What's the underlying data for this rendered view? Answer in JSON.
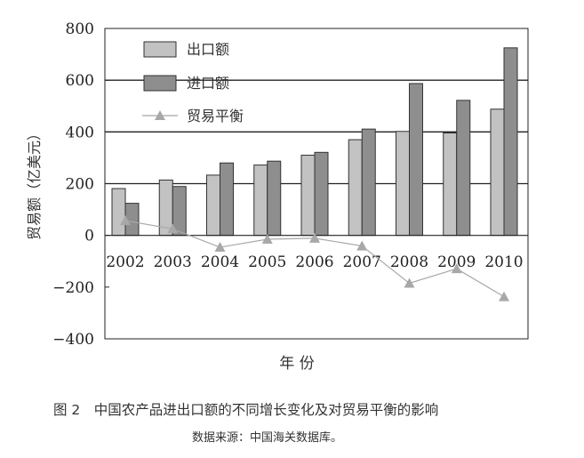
{
  "chart_data": {
    "type": "bar",
    "categories": [
      "2002",
      "2003",
      "2004",
      "2005",
      "2006",
      "2007",
      "2008",
      "2009",
      "2010"
    ],
    "series": [
      {
        "name": "出口额",
        "kind": "bar",
        "color": "#c2c2c2",
        "values": [
          181,
          214,
          233,
          272,
          310,
          370,
          402,
          396,
          488
        ]
      },
      {
        "name": "进口额",
        "kind": "bar",
        "color": "#8e8e8e",
        "values": [
          124,
          189,
          280,
          287,
          321,
          411,
          587,
          522,
          725
        ]
      },
      {
        "name": "贸易平衡",
        "kind": "line",
        "color": "#a8a8a8",
        "values": [
          57,
          25,
          -46,
          -15,
          -11,
          -41,
          -185,
          -129,
          -237
        ]
      }
    ],
    "ylim": [
      -400,
      800
    ],
    "yticks": [
      800,
      600,
      400,
      200,
      0,
      -200,
      -400
    ],
    "ytick_labels": [
      "800",
      "600",
      "400",
      "200",
      "0",
      "−200",
      "−400"
    ],
    "gridlines": [
      600,
      400,
      200
    ],
    "ylabel": "贸易额（亿美元）",
    "xlabel": "年 份",
    "legend_position": "top-left"
  },
  "caption": {
    "title": "图 2　中国农产品进出口额的不同增长变化及对贸易平衡的影响",
    "source": "数据来源：中国海关数据库。"
  }
}
